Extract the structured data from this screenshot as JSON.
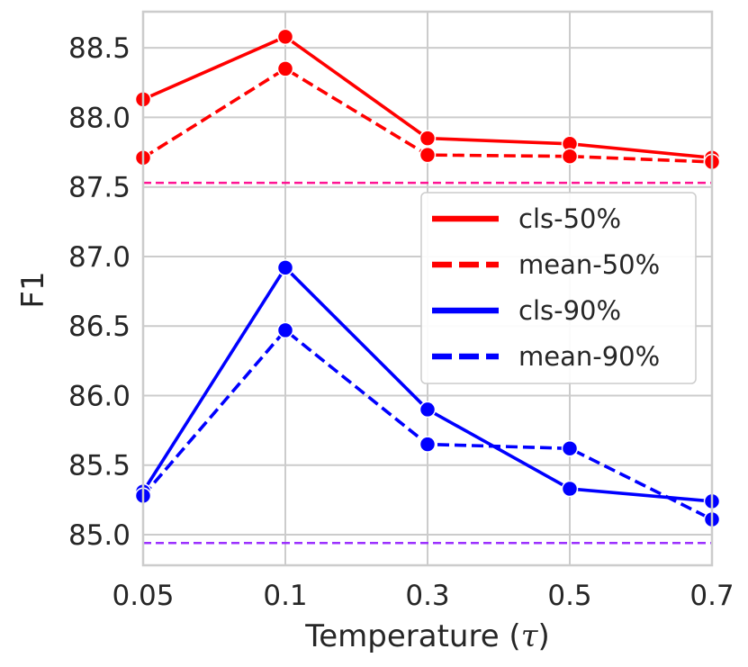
{
  "chart_data": {
    "type": "line",
    "title": "",
    "xlabel": "Temperature (τ)",
    "xlabel_main": "Temperature (",
    "xlabel_symbol": "τ",
    "xlabel_end": ")",
    "ylabel": "F1",
    "categories": [
      "0.05",
      "0.1",
      "0.3",
      "0.5",
      "0.7"
    ],
    "ylim": [
      84.78,
      88.76
    ],
    "yticks": [
      "85.0",
      "85.5",
      "86.0",
      "86.5",
      "87.0",
      "87.5",
      "88.0",
      "88.5"
    ],
    "grid": true,
    "legend_position": "right",
    "series": [
      {
        "name": "cls-50%",
        "values": [
          88.13,
          88.58,
          87.85,
          87.81,
          87.71
        ],
        "color": "#ff0000",
        "dash": "solid"
      },
      {
        "name": "mean-50%",
        "values": [
          87.71,
          88.35,
          87.73,
          87.72,
          87.68
        ],
        "color": "#ff0000",
        "dash": "dashed"
      },
      {
        "name": "cls-90%",
        "values": [
          85.31,
          86.92,
          85.9,
          85.33,
          85.24
        ],
        "color": "#0000ff",
        "dash": "solid"
      },
      {
        "name": "mean-90%",
        "values": [
          85.28,
          86.47,
          85.65,
          85.62,
          85.11
        ],
        "color": "#0000ff",
        "dash": "dashed"
      }
    ],
    "reference_lines": [
      {
        "value": 87.53,
        "color": "#ff1493",
        "dash": "dashed"
      },
      {
        "value": 84.94,
        "color": "#9b30ff",
        "dash": "dashed"
      }
    ]
  }
}
